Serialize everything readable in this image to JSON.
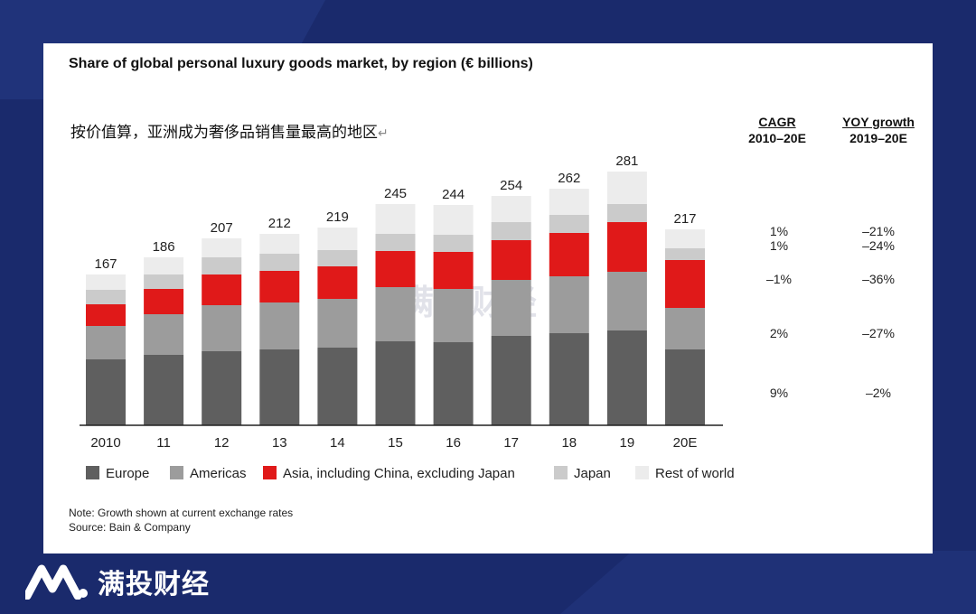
{
  "page": {
    "title": "Share of global personal luxury goods market, by region (€ billions)",
    "subtitle": "按价值算，亚洲成为奢侈品销售量最高的地区",
    "cagr_header": [
      "CAGR",
      "2010–20E"
    ],
    "yoy_header": [
      "YOY growth",
      "2019–20E"
    ],
    "note": "Note: Growth shown at current exchange rates",
    "source": "Source: Bain & Company",
    "watermark": "满投财经",
    "brand": "满投财经"
  },
  "chart_data": {
    "type": "bar",
    "stacked": true,
    "categories": [
      "2010",
      "11",
      "12",
      "13",
      "14",
      "15",
      "16",
      "17",
      "18",
      "19",
      "20E"
    ],
    "totals": [
      167,
      186,
      207,
      212,
      219,
      245,
      244,
      254,
      262,
      281,
      217
    ],
    "series": [
      {
        "name": "Europe",
        "color": "#5f5f5f",
        "values": [
          73,
          78,
          82,
          84,
          86,
          93,
          92,
          99,
          102,
          105,
          84
        ]
      },
      {
        "name": "Americas",
        "color": "#9c9c9c",
        "values": [
          37,
          45,
          51,
          52,
          54,
          60,
          59,
          62,
          63,
          65,
          46
        ]
      },
      {
        "name": "Asia, including China, excluding Japan",
        "color": "#e01919",
        "values": [
          24,
          28,
          34,
          35,
          36,
          40,
          41,
          44,
          48,
          55,
          53
        ]
      },
      {
        "name": "Japan",
        "color": "#cbcbcb",
        "values": [
          16,
          16,
          19,
          19,
          18,
          19,
          19,
          20,
          20,
          20,
          13
        ]
      },
      {
        "name": "Rest of world",
        "color": "#ececec",
        "values": [
          17,
          19,
          21,
          22,
          25,
          33,
          33,
          29,
          29,
          36,
          21
        ]
      }
    ],
    "cagr": [
      "1%",
      "1%",
      "–1%",
      "2%",
      "9%"
    ],
    "yoy": [
      "–21%",
      "–24%",
      "–36%",
      "–27%",
      "–2%"
    ],
    "ylim": [
      0,
      290
    ],
    "legend_position": "bottom"
  }
}
